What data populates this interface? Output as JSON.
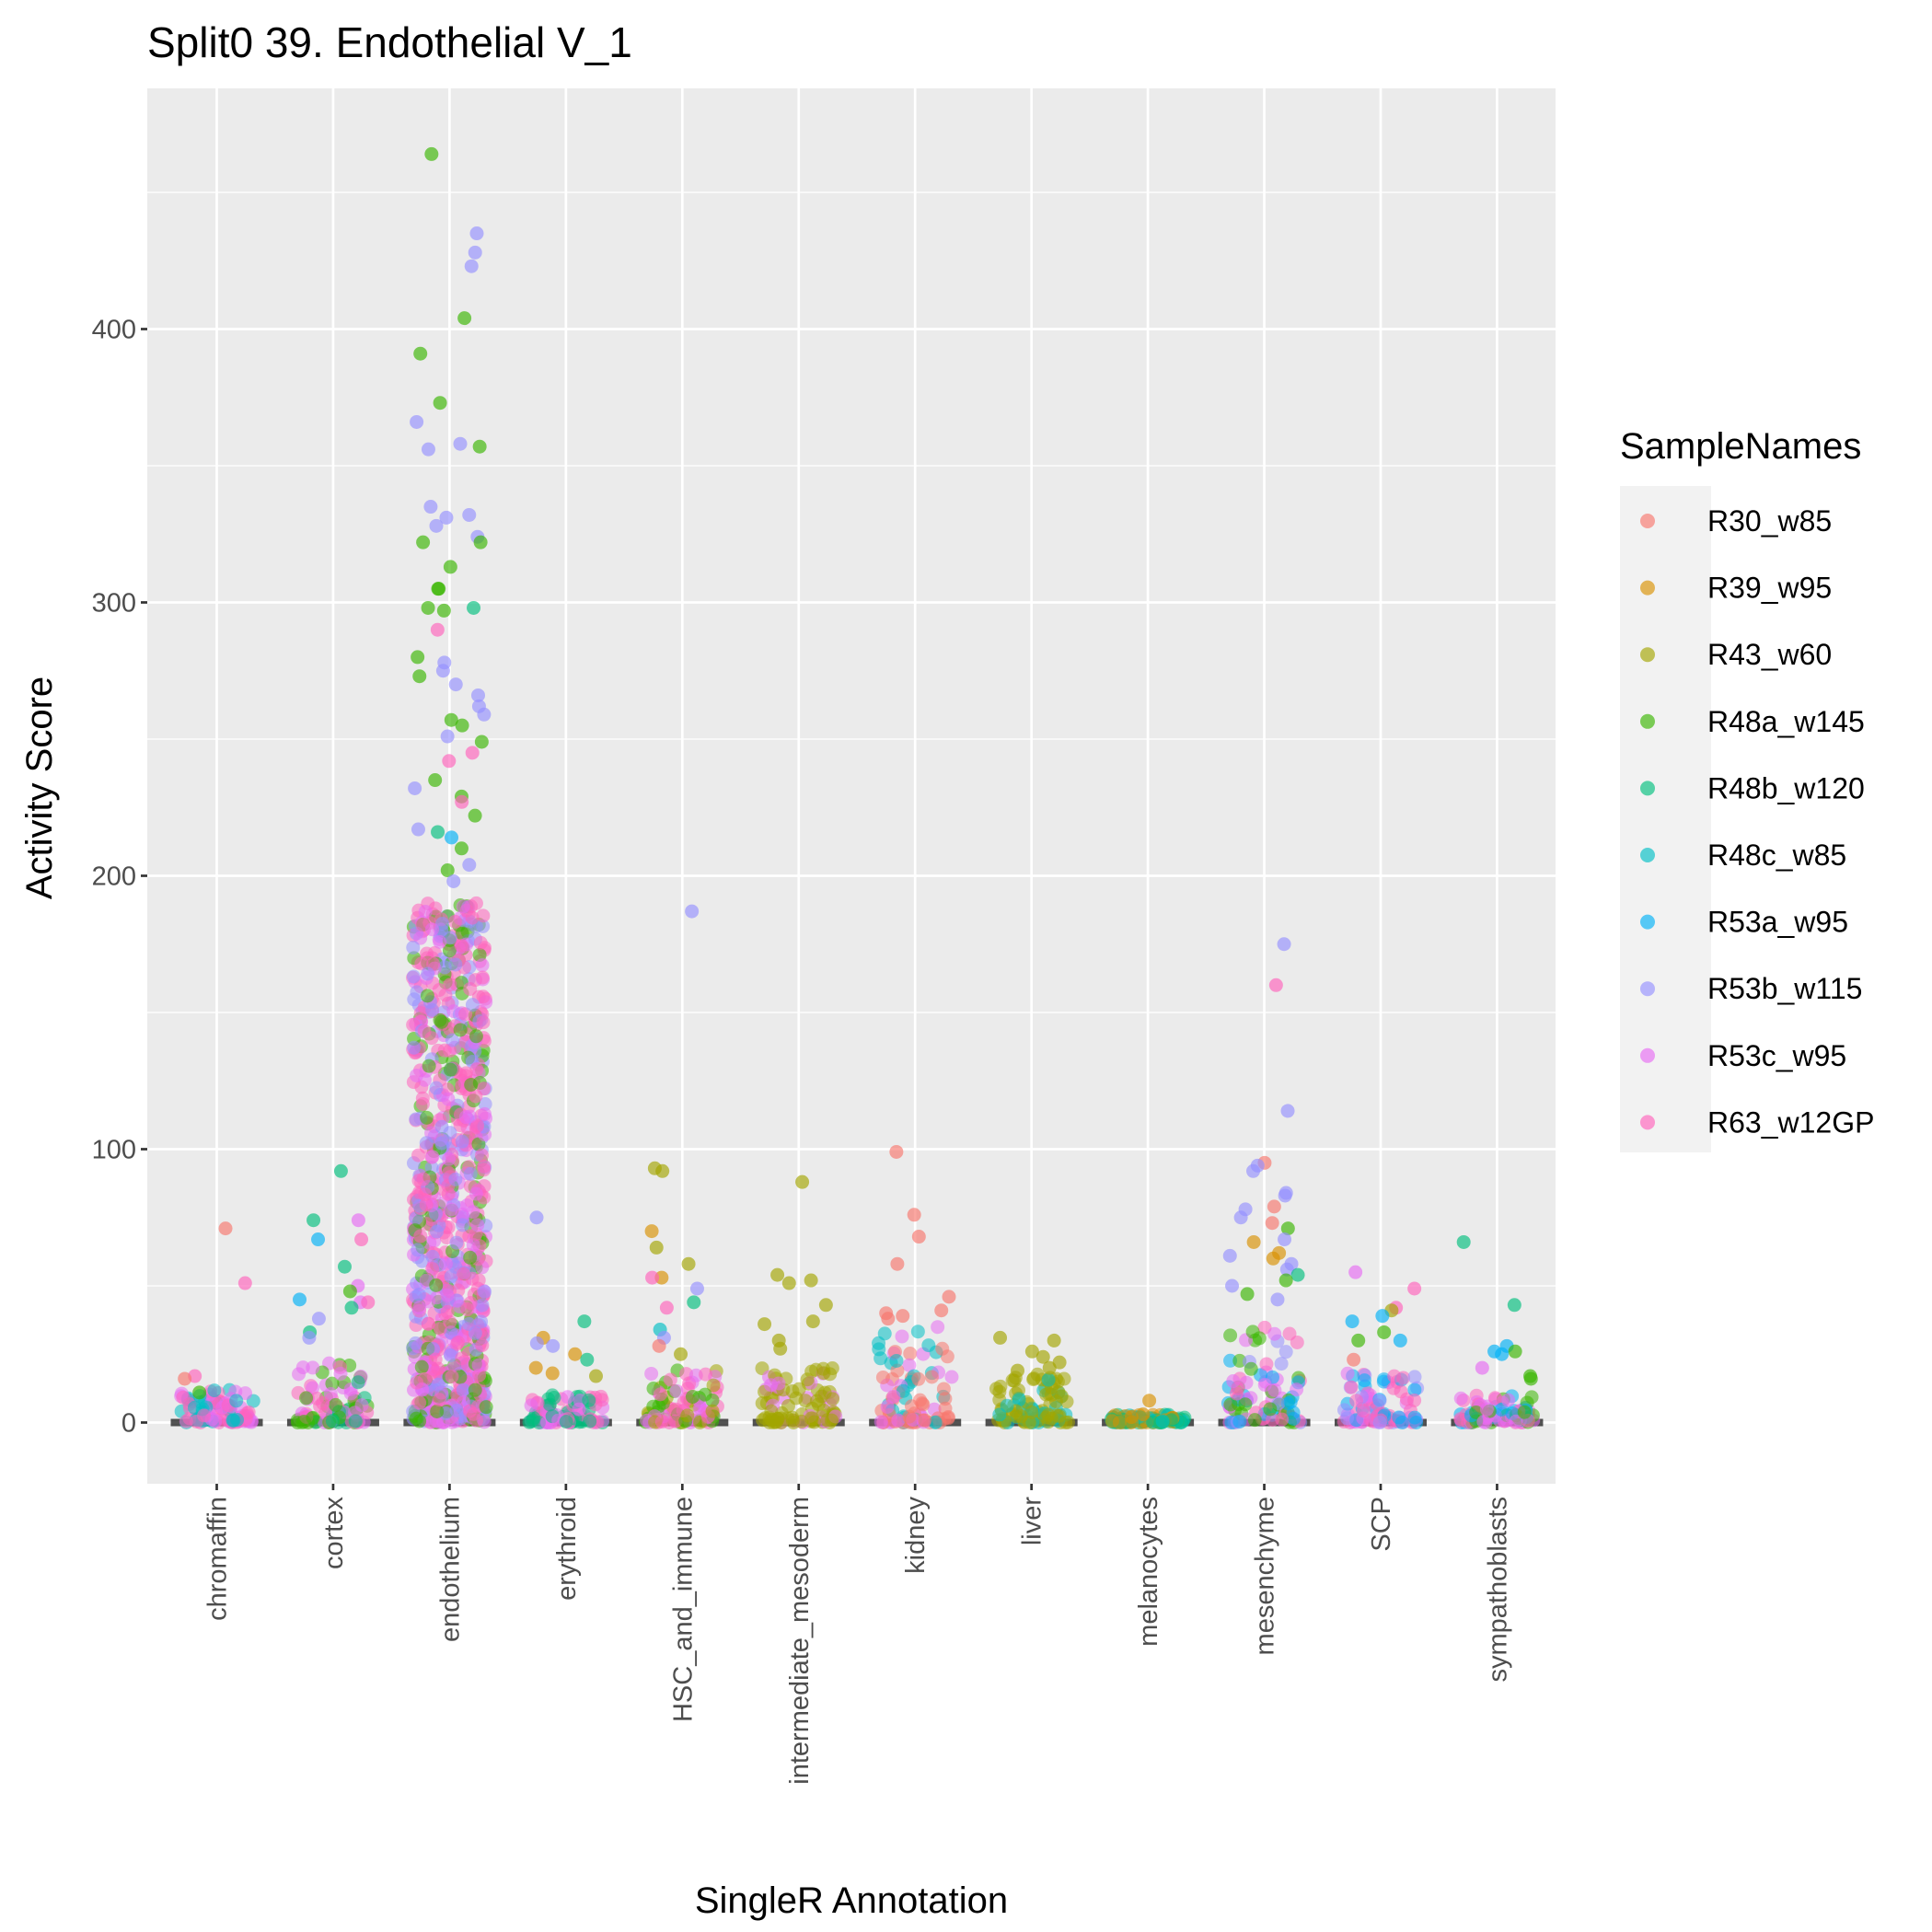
{
  "chart_data": {
    "type": "scatter",
    "title": "Split0 39. Endothelial V_1",
    "xlabel": "SingleR Annotation",
    "ylabel": "Activity Score",
    "ylim": [
      -22,
      465
    ],
    "yticks": [
      0,
      100,
      200,
      300,
      400
    ],
    "categories": [
      "chromaffin",
      "cortex",
      "endothelium",
      "erythroid",
      "HSC_and_immune",
      "intermediate_mesoderm",
      "kidney",
      "liver",
      "melanocytes",
      "mesenchyme",
      "SCP",
      "sympathoblasts"
    ],
    "grid": true,
    "legend": {
      "title": "SampleNames",
      "placement": "right",
      "entries": [
        {
          "name": "R30_w85",
          "color": "#F8766D"
        },
        {
          "name": "R39_w95",
          "color": "#D89000"
        },
        {
          "name": "R43_w60",
          "color": "#A3A500"
        },
        {
          "name": "R48a_w145",
          "color": "#39B600"
        },
        {
          "name": "R48b_w120",
          "color": "#00BF7D"
        },
        {
          "name": "R48c_w85",
          "color": "#00BFC4"
        },
        {
          "name": "R53a_w95",
          "color": "#00B0F6"
        },
        {
          "name": "R53b_w115",
          "color": "#9590FF"
        },
        {
          "name": "R53c_w95",
          "color": "#E76BF3"
        },
        {
          "name": "R63_w12GP",
          "color": "#FF62BC"
        }
      ]
    },
    "series": [
      {
        "category": "chromaffin",
        "bulk_max": 12,
        "outliers": [
          {
            "s": "R30_w85",
            "y": 71
          },
          {
            "s": "R63_w12GP",
            "y": 51
          },
          {
            "s": "R63_w12GP",
            "y": 17
          },
          {
            "s": "R30_w85",
            "y": 16
          },
          {
            "s": "R48a_w145",
            "y": 11
          }
        ]
      },
      {
        "category": "cortex",
        "bulk_max": 22,
        "outliers": [
          {
            "s": "R48b_w120",
            "y": 92
          },
          {
            "s": "R48b_w120",
            "y": 74
          },
          {
            "s": "R53c_w95",
            "y": 74
          },
          {
            "s": "R53a_w95",
            "y": 67
          },
          {
            "s": "R63_w12GP",
            "y": 67
          },
          {
            "s": "R48b_w120",
            "y": 57
          },
          {
            "s": "R53c_w95",
            "y": 50
          },
          {
            "s": "R48a_w145",
            "y": 48
          },
          {
            "s": "R53a_w95",
            "y": 45
          },
          {
            "s": "R53c_w95",
            "y": 44
          },
          {
            "s": "R63_w12GP",
            "y": 44
          },
          {
            "s": "R48b_w120",
            "y": 42
          },
          {
            "s": "R53b_w115",
            "y": 38
          },
          {
            "s": "R48b_w120",
            "y": 33
          },
          {
            "s": "R53b_w115",
            "y": 31
          }
        ]
      },
      {
        "category": "endothelium",
        "bulk_max": 190,
        "outliers": [
          {
            "s": "R48a_w145",
            "y": 464
          },
          {
            "s": "R53b_w115",
            "y": 435
          },
          {
            "s": "R53b_w115",
            "y": 428
          },
          {
            "s": "R53b_w115",
            "y": 423
          },
          {
            "s": "R48a_w145",
            "y": 404
          },
          {
            "s": "R48a_w145",
            "y": 391
          },
          {
            "s": "R48a_w145",
            "y": 373
          },
          {
            "s": "R53b_w115",
            "y": 366
          },
          {
            "s": "R53b_w115",
            "y": 358
          },
          {
            "s": "R48a_w145",
            "y": 357
          },
          {
            "s": "R53b_w115",
            "y": 356
          },
          {
            "s": "R53b_w115",
            "y": 335
          },
          {
            "s": "R53b_w115",
            "y": 332
          },
          {
            "s": "R53b_w115",
            "y": 331
          },
          {
            "s": "R53b_w115",
            "y": 328
          },
          {
            "s": "R53b_w115",
            "y": 324
          },
          {
            "s": "R48a_w145",
            "y": 322
          },
          {
            "s": "R48a_w145",
            "y": 322
          },
          {
            "s": "R48a_w145",
            "y": 313
          },
          {
            "s": "R48a_w145",
            "y": 305
          },
          {
            "s": "R48a_w145",
            "y": 305
          },
          {
            "s": "R48b_w120",
            "y": 298
          },
          {
            "s": "R48a_w145",
            "y": 298
          },
          {
            "s": "R48a_w145",
            "y": 297
          },
          {
            "s": "R63_w12GP",
            "y": 290
          },
          {
            "s": "R48a_w145",
            "y": 280
          },
          {
            "s": "R53b_w115",
            "y": 278
          },
          {
            "s": "R53b_w115",
            "y": 275
          },
          {
            "s": "R48a_w145",
            "y": 273
          },
          {
            "s": "R53b_w115",
            "y": 270
          },
          {
            "s": "R53b_w115",
            "y": 266
          },
          {
            "s": "R53b_w115",
            "y": 262
          },
          {
            "s": "R48a_w145",
            "y": 257
          },
          {
            "s": "R53b_w115",
            "y": 259
          },
          {
            "s": "R48a_w145",
            "y": 255
          },
          {
            "s": "R53b_w115",
            "y": 251
          },
          {
            "s": "R48a_w145",
            "y": 249
          },
          {
            "s": "R63_w12GP",
            "y": 245
          },
          {
            "s": "R63_w12GP",
            "y": 242
          },
          {
            "s": "R48a_w145",
            "y": 235
          },
          {
            "s": "R53b_w115",
            "y": 232
          },
          {
            "s": "R48a_w145",
            "y": 229
          },
          {
            "s": "R63_w12GP",
            "y": 227
          },
          {
            "s": "R48a_w145",
            "y": 222
          },
          {
            "s": "R53b_w115",
            "y": 217
          },
          {
            "s": "R48b_w120",
            "y": 216
          },
          {
            "s": "R53a_w95",
            "y": 214
          },
          {
            "s": "R48a_w145",
            "y": 210
          },
          {
            "s": "R53b_w115",
            "y": 204
          },
          {
            "s": "R48a_w145",
            "y": 202
          },
          {
            "s": "R53b_w115",
            "y": 198
          }
        ]
      },
      {
        "category": "erythroid",
        "bulk_max": 10,
        "outliers": [
          {
            "s": "R53b_w115",
            "y": 75
          },
          {
            "s": "R48b_w120",
            "y": 37
          },
          {
            "s": "R39_w95",
            "y": 31
          },
          {
            "s": "R53b_w115",
            "y": 29
          },
          {
            "s": "R53b_w115",
            "y": 28
          },
          {
            "s": "R39_w95",
            "y": 25
          },
          {
            "s": "R48b_w120",
            "y": 23
          },
          {
            "s": "R39_w95",
            "y": 20
          },
          {
            "s": "R39_w95",
            "y": 18
          },
          {
            "s": "R43_w60",
            "y": 17
          }
        ]
      },
      {
        "category": "HSC_and_immune",
        "bulk_max": 20,
        "outliers": [
          {
            "s": "R53b_w115",
            "y": 187
          },
          {
            "s": "R43_w60",
            "y": 93
          },
          {
            "s": "R43_w60",
            "y": 92
          },
          {
            "s": "R39_w95",
            "y": 70
          },
          {
            "s": "R43_w60",
            "y": 64
          },
          {
            "s": "R43_w60",
            "y": 58
          },
          {
            "s": "R39_w95",
            "y": 53
          },
          {
            "s": "R63_w12GP",
            "y": 53
          },
          {
            "s": "R53b_w115",
            "y": 49
          },
          {
            "s": "R48b_w120",
            "y": 44
          },
          {
            "s": "R63_w12GP",
            "y": 42
          },
          {
            "s": "R48c_w85",
            "y": 34
          },
          {
            "s": "R53b_w115",
            "y": 31
          },
          {
            "s": "R30_w85",
            "y": 28
          },
          {
            "s": "R43_w60",
            "y": 25
          }
        ]
      },
      {
        "category": "intermediate_mesoderm",
        "bulk_max": 20,
        "outliers": [
          {
            "s": "R43_w60",
            "y": 88
          },
          {
            "s": "R43_w60",
            "y": 54
          },
          {
            "s": "R43_w60",
            "y": 52
          },
          {
            "s": "R43_w60",
            "y": 51
          },
          {
            "s": "R43_w60",
            "y": 43
          },
          {
            "s": "R43_w60",
            "y": 37
          },
          {
            "s": "R43_w60",
            "y": 36
          },
          {
            "s": "R43_w60",
            "y": 30
          },
          {
            "s": "R43_w60",
            "y": 27
          }
        ]
      },
      {
        "category": "kidney",
        "bulk_max": 35,
        "outliers": [
          {
            "s": "R30_w85",
            "y": 99
          },
          {
            "s": "R30_w85",
            "y": 76
          },
          {
            "s": "R30_w85",
            "y": 68
          },
          {
            "s": "R30_w85",
            "y": 58
          },
          {
            "s": "R30_w85",
            "y": 46
          },
          {
            "s": "R30_w85",
            "y": 41
          },
          {
            "s": "R30_w85",
            "y": 40
          },
          {
            "s": "R30_w85",
            "y": 39
          },
          {
            "s": "R30_w85",
            "y": 38
          }
        ]
      },
      {
        "category": "liver",
        "bulk_max": 18,
        "outliers": [
          {
            "s": "R43_w60",
            "y": 31
          },
          {
            "s": "R43_w60",
            "y": 30
          },
          {
            "s": "R43_w60",
            "y": 26
          },
          {
            "s": "R43_w60",
            "y": 24
          },
          {
            "s": "R43_w60",
            "y": 22
          },
          {
            "s": "R43_w60",
            "y": 20
          },
          {
            "s": "R43_w60",
            "y": 19
          }
        ]
      },
      {
        "category": "melanocytes",
        "bulk_max": 3,
        "outliers": [
          {
            "s": "R39_w95",
            "y": 8
          },
          {
            "s": "R39_w95",
            "y": 3
          },
          {
            "s": "R39_w95",
            "y": 2
          }
        ]
      },
      {
        "category": "mesenchyme",
        "bulk_max": 38,
        "outliers": [
          {
            "s": "R53b_w115",
            "y": 175
          },
          {
            "s": "R63_w12GP",
            "y": 160
          },
          {
            "s": "R53b_w115",
            "y": 114
          },
          {
            "s": "R30_w85",
            "y": 95
          },
          {
            "s": "R53b_w115",
            "y": 94
          },
          {
            "s": "R53b_w115",
            "y": 92
          },
          {
            "s": "R53b_w115",
            "y": 84
          },
          {
            "s": "R53b_w115",
            "y": 83
          },
          {
            "s": "R30_w85",
            "y": 79
          },
          {
            "s": "R53b_w115",
            "y": 78
          },
          {
            "s": "R53b_w115",
            "y": 75
          },
          {
            "s": "R30_w85",
            "y": 73
          },
          {
            "s": "R48a_w145",
            "y": 71
          },
          {
            "s": "R53b_w115",
            "y": 67
          },
          {
            "s": "R39_w95",
            "y": 66
          },
          {
            "s": "R39_w95",
            "y": 62
          },
          {
            "s": "R53b_w115",
            "y": 61
          },
          {
            "s": "R39_w95",
            "y": 60
          },
          {
            "s": "R53b_w115",
            "y": 58
          },
          {
            "s": "R53b_w115",
            "y": 56
          },
          {
            "s": "R48b_w120",
            "y": 54
          },
          {
            "s": "R48a_w145",
            "y": 52
          },
          {
            "s": "R53b_w115",
            "y": 50
          },
          {
            "s": "R48a_w145",
            "y": 47
          },
          {
            "s": "R53b_w115",
            "y": 45
          }
        ]
      },
      {
        "category": "SCP",
        "bulk_max": 18,
        "outliers": [
          {
            "s": "R53c_w95",
            "y": 55
          },
          {
            "s": "R63_w12GP",
            "y": 49
          },
          {
            "s": "R63_w12GP",
            "y": 42
          },
          {
            "s": "R43_w60",
            "y": 41
          },
          {
            "s": "R53a_w95",
            "y": 39
          },
          {
            "s": "R53a_w95",
            "y": 37
          },
          {
            "s": "R48a_w145",
            "y": 33
          },
          {
            "s": "R48a_w145",
            "y": 30
          },
          {
            "s": "R53a_w95",
            "y": 30
          },
          {
            "s": "R30_w85",
            "y": 23
          }
        ]
      },
      {
        "category": "sympathoblasts",
        "bulk_max": 10,
        "outliers": [
          {
            "s": "R48b_w120",
            "y": 66
          },
          {
            "s": "R48b_w120",
            "y": 43
          },
          {
            "s": "R53a_w95",
            "y": 28
          },
          {
            "s": "R48a_w145",
            "y": 26
          },
          {
            "s": "R53a_w95",
            "y": 26
          },
          {
            "s": "R53a_w95",
            "y": 25
          },
          {
            "s": "R53c_w95",
            "y": 20
          },
          {
            "s": "R48a_w145",
            "y": 17
          },
          {
            "s": "R48a_w145",
            "y": 16
          }
        ]
      }
    ]
  }
}
